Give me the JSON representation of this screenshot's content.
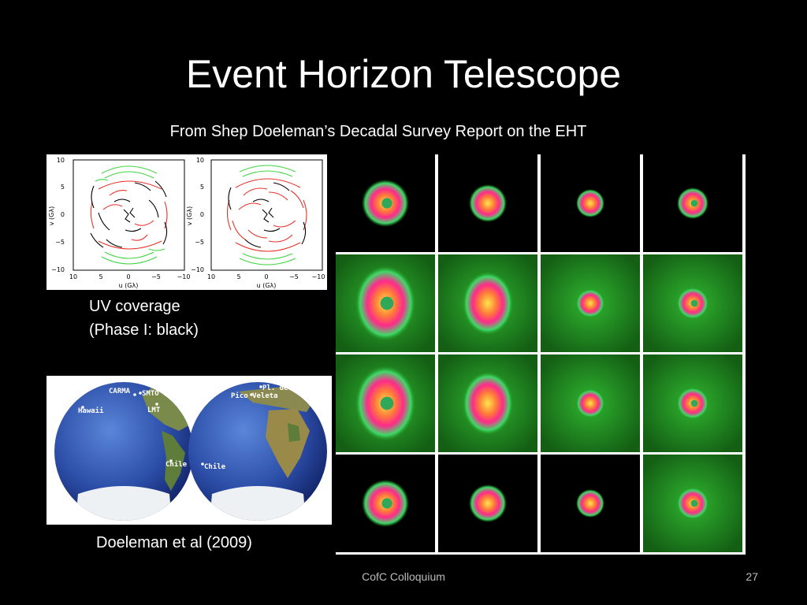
{
  "slide": {
    "title": "Event Horizon Telescope",
    "subtitle": "From Shep Doeleman’s Decadal Survey Report on the EHT"
  },
  "uv_plot": {
    "y_axis_label": "v (Gλ)",
    "x_axis_label": "u (Gλ)",
    "y_ticks": [
      "10",
      "5",
      "0",
      "−5",
      "−10"
    ],
    "x_ticks": [
      "10",
      "5",
      "0",
      "−5",
      "−10"
    ],
    "colors": {
      "phase1": "#000000",
      "red": "#e8312a",
      "green": "#3fd43f"
    },
    "caption_line1": "UV coverage",
    "caption_line2": "(Phase I: black)"
  },
  "map": {
    "sites": [
      "CARMA",
      "SMTO",
      "Hawaii",
      "LMT",
      "Chile",
      "Pl. de Bure",
      "Pico Veleta",
      "Chile"
    ],
    "caption": "Doeleman et al (2009)"
  },
  "image_grid": {
    "rows": 4,
    "cols": 4,
    "colors": {
      "background_row1": "#000000",
      "model_green": "#1fa21f",
      "core": "#ffe64a",
      "ring": "#ff2a8c"
    }
  },
  "footer": {
    "center": "CofC Colloquium",
    "page_number": "27"
  }
}
